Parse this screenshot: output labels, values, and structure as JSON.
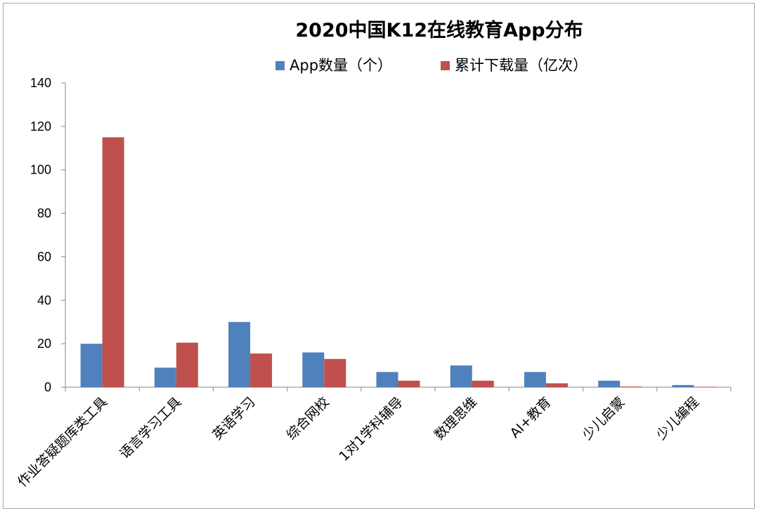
{
  "chart_data": {
    "type": "bar",
    "title": "2020中国K12在线教育App分布",
    "categories": [
      "作业答疑题库类工具",
      "语言学习工具",
      "英语学习",
      "综合网校",
      "1对1学科辅导",
      "数理思维",
      "AI+教育",
      "少儿启蒙",
      "少儿编程"
    ],
    "series": [
      {
        "name": "App数量（个）",
        "color": "#4f81bd",
        "values": [
          20,
          9,
          30,
          16,
          7,
          10,
          7,
          3,
          1
        ]
      },
      {
        "name": "累计下载量（亿次）",
        "color": "#c0504d",
        "values": [
          115,
          20.5,
          15.5,
          13,
          3,
          3,
          1.8,
          0.3,
          0.2
        ]
      }
    ],
    "yticks": [
      "0",
      "20",
      "40",
      "60",
      "80",
      "100",
      "120",
      "140"
    ],
    "ylim": [
      0,
      140
    ],
    "legend_position": "top",
    "grid": false
  }
}
